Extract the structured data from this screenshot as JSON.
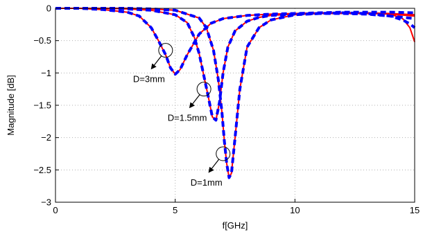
{
  "chart_data": {
    "type": "line",
    "xlabel": "f[GHz]",
    "ylabel": "Magnitude [dB]",
    "xlim": [
      0,
      15
    ],
    "ylim": [
      -3,
      0
    ],
    "xticks": [
      "0",
      "5",
      "10",
      "15"
    ],
    "yticks": [
      "0",
      "-0.5",
      "-1",
      "-1.5",
      "-2",
      "-2.5",
      "-3"
    ],
    "grid": true,
    "series": [
      {
        "color": "#ff0000",
        "style": "solid",
        "x": [
          0,
          1,
          2,
          3,
          3.5,
          4,
          4.3,
          4.6,
          4.8,
          5.0,
          5.2,
          5.5,
          6,
          6.5,
          7,
          8,
          9,
          10,
          11,
          12,
          13,
          14,
          15
        ],
        "y": [
          0,
          0,
          -0.02,
          -0.06,
          -0.12,
          -0.3,
          -0.5,
          -0.72,
          -0.92,
          -1.02,
          -0.95,
          -0.72,
          -0.4,
          -0.23,
          -0.16,
          -0.11,
          -0.09,
          -0.08,
          -0.07,
          -0.07,
          -0.07,
          -0.08,
          -0.1
        ]
      },
      {
        "color": "#ff0000",
        "style": "solid",
        "x": [
          0,
          2,
          3,
          4,
          5,
          5.5,
          5.8,
          6.0,
          6.2,
          6.4,
          6.55,
          6.7,
          6.85,
          7.0,
          7.2,
          7.5,
          8,
          8.5,
          9,
          10,
          11,
          12,
          13,
          14,
          15
        ],
        "y": [
          0,
          0,
          -0.01,
          -0.03,
          -0.1,
          -0.22,
          -0.45,
          -0.7,
          -1.05,
          -1.4,
          -1.68,
          -1.73,
          -1.45,
          -1.0,
          -0.6,
          -0.35,
          -0.2,
          -0.14,
          -0.11,
          -0.09,
          -0.08,
          -0.08,
          -0.08,
          -0.09,
          -0.12
        ]
      },
      {
        "color": "#ff0000",
        "style": "solid",
        "x": [
          0,
          3,
          4,
          5,
          6,
          6.3,
          6.6,
          6.8,
          6.95,
          7.05,
          7.15,
          7.25,
          7.35,
          7.5,
          7.7,
          8.0,
          8.5,
          9,
          10,
          11,
          12,
          13,
          14,
          14.5,
          14.8,
          15
        ],
        "y": [
          0,
          0,
          -0.01,
          -0.03,
          -0.15,
          -0.3,
          -0.65,
          -1.1,
          -1.6,
          -2.05,
          -2.4,
          -2.62,
          -2.55,
          -2.0,
          -1.25,
          -0.6,
          -0.3,
          -0.18,
          -0.1,
          -0.08,
          -0.07,
          -0.07,
          -0.09,
          -0.16,
          -0.3,
          -0.52
        ]
      },
      {
        "color": "#0000ff",
        "style": "dashed",
        "x": [
          0,
          1,
          2,
          3,
          3.5,
          4,
          4.3,
          4.6,
          4.8,
          5.0,
          5.2,
          5.5,
          6,
          6.5,
          7,
          8,
          9,
          10,
          11,
          12,
          13,
          14,
          15
        ],
        "y": [
          0,
          0,
          -0.02,
          -0.06,
          -0.12,
          -0.3,
          -0.5,
          -0.72,
          -0.92,
          -1.02,
          -0.95,
          -0.72,
          -0.4,
          -0.23,
          -0.16,
          -0.11,
          -0.09,
          -0.08,
          -0.07,
          -0.06,
          -0.06,
          -0.06,
          -0.07
        ]
      },
      {
        "color": "#0000ff",
        "style": "dashed",
        "x": [
          0,
          2,
          3,
          4,
          5,
          5.5,
          5.8,
          6.0,
          6.2,
          6.4,
          6.55,
          6.7,
          6.85,
          7.0,
          7.2,
          7.5,
          8,
          8.5,
          9,
          10,
          11,
          12,
          13,
          14,
          15
        ],
        "y": [
          0,
          0,
          -0.01,
          -0.03,
          -0.1,
          -0.22,
          -0.45,
          -0.7,
          -1.05,
          -1.4,
          -1.68,
          -1.73,
          -1.45,
          -1.0,
          -0.6,
          -0.35,
          -0.2,
          -0.14,
          -0.11,
          -0.09,
          -0.08,
          -0.08,
          -0.09,
          -0.12,
          -0.16
        ]
      },
      {
        "color": "#0000ff",
        "style": "dashed",
        "x": [
          0,
          3,
          4,
          5,
          6,
          6.3,
          6.6,
          6.8,
          6.95,
          7.05,
          7.15,
          7.25,
          7.35,
          7.5,
          7.7,
          8.0,
          8.5,
          9,
          10,
          11,
          12,
          13,
          14,
          14.5,
          14.8,
          15
        ],
        "y": [
          0,
          0,
          -0.01,
          -0.03,
          -0.15,
          -0.3,
          -0.65,
          -1.1,
          -1.6,
          -2.05,
          -2.4,
          -2.62,
          -2.55,
          -2.0,
          -1.25,
          -0.6,
          -0.3,
          -0.18,
          -0.1,
          -0.08,
          -0.07,
          -0.08,
          -0.12,
          -0.18,
          -0.24,
          -0.3
        ]
      }
    ],
    "annotations": [
      {
        "text": "D=3mm",
        "x": 4.6,
        "y": -0.65
      },
      {
        "text": "D=1.5mm",
        "x": 6.2,
        "y": -1.25
      },
      {
        "text": "D=1mm",
        "x": 7.0,
        "y": -2.25
      }
    ]
  }
}
